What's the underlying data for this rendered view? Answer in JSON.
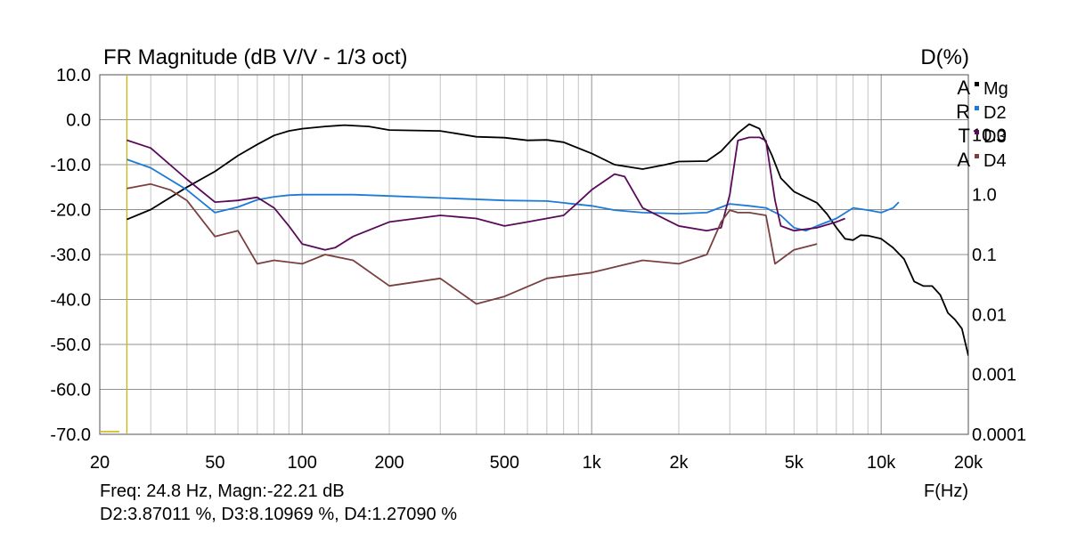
{
  "chart_data": {
    "type": "line",
    "title": "FR Magnitude (dB V/V - 1/3 oct)",
    "right_axis_title": "D(%)",
    "xlabel": "F(Hz)",
    "x_scale": "log",
    "xlim": [
      20,
      20000
    ],
    "ylim": [
      -70,
      10
    ],
    "y2_scale": "log",
    "y2lim": [
      0.0001,
      100
    ],
    "grid": true,
    "x_tick_labels": [
      {
        "v": 20,
        "t": "20"
      },
      {
        "v": 50,
        "t": "50"
      },
      {
        "v": 100,
        "t": "100"
      },
      {
        "v": 200,
        "t": "200"
      },
      {
        "v": 500,
        "t": "500"
      },
      {
        "v": 1000,
        "t": "1k"
      },
      {
        "v": 2000,
        "t": "2k"
      },
      {
        "v": 5000,
        "t": "5k"
      },
      {
        "v": 10000,
        "t": "10k"
      },
      {
        "v": 20000,
        "t": "20k"
      }
    ],
    "y_tick_labels": [
      {
        "v": 10,
        "t": "10.0"
      },
      {
        "v": 0,
        "t": "0.0"
      },
      {
        "v": -10,
        "t": "-10.0"
      },
      {
        "v": -20,
        "t": "-20.0"
      },
      {
        "v": -30,
        "t": "-30.0"
      },
      {
        "v": -40,
        "t": "-40.0"
      },
      {
        "v": -50,
        "t": "-50.0"
      },
      {
        "v": -60,
        "t": "-60.0"
      },
      {
        "v": -70,
        "t": "-70.0"
      }
    ],
    "y2_tick_labels": [
      {
        "v": 10,
        "t": "10.0"
      },
      {
        "v": 1,
        "t": "1.0"
      },
      {
        "v": 0.1,
        "t": "0.1"
      },
      {
        "v": 0.01,
        "t": "0.01"
      },
      {
        "v": 0.001,
        "t": "0.001"
      },
      {
        "v": 0.0001,
        "t": "0.0001"
      }
    ],
    "brand_letters": [
      "A",
      "R",
      "T",
      "A"
    ],
    "legend_position": "top-right",
    "cursor": {
      "x": 24.8
    },
    "readout": {
      "line1": "Freq: 24.8 Hz, Magn:-22.21 dB",
      "line2": "D2:3.87011 %, D3:8.10969 %, D4:1.27090 %"
    },
    "series": [
      {
        "name": "Mg",
        "axis": "left",
        "color": "#000000",
        "points": [
          [
            24.8,
            -22.2
          ],
          [
            30,
            -20
          ],
          [
            40,
            -15
          ],
          [
            50,
            -11.5
          ],
          [
            60,
            -8
          ],
          [
            70,
            -5.5
          ],
          [
            80,
            -3.5
          ],
          [
            90,
            -2.5
          ],
          [
            100,
            -2
          ],
          [
            120,
            -1.5
          ],
          [
            140,
            -1.2
          ],
          [
            170,
            -1.5
          ],
          [
            200,
            -2.3
          ],
          [
            300,
            -2.5
          ],
          [
            400,
            -3.8
          ],
          [
            500,
            -4
          ],
          [
            600,
            -4.6
          ],
          [
            700,
            -4.5
          ],
          [
            800,
            -5
          ],
          [
            1000,
            -7.5
          ],
          [
            1200,
            -10
          ],
          [
            1500,
            -11
          ],
          [
            1800,
            -10
          ],
          [
            2000,
            -9.3
          ],
          [
            2500,
            -9.2
          ],
          [
            2800,
            -7
          ],
          [
            3200,
            -3
          ],
          [
            3500,
            -1
          ],
          [
            3800,
            -2
          ],
          [
            4200,
            -8
          ],
          [
            4500,
            -13
          ],
          [
            5000,
            -16
          ],
          [
            6000,
            -18.5
          ],
          [
            6500,
            -21
          ],
          [
            7000,
            -24
          ],
          [
            7500,
            -26.5
          ],
          [
            8000,
            -26.8
          ],
          [
            8500,
            -25.7
          ],
          [
            9000,
            -25.8
          ],
          [
            10000,
            -26.5
          ],
          [
            11000,
            -28.5
          ],
          [
            12000,
            -31
          ],
          [
            13000,
            -36
          ],
          [
            14000,
            -37
          ],
          [
            15000,
            -37
          ],
          [
            16000,
            -39
          ],
          [
            17000,
            -43
          ],
          [
            18000,
            -44.5
          ],
          [
            19000,
            -46.5
          ],
          [
            20000,
            -52.5
          ]
        ]
      },
      {
        "name": "D2",
        "axis": "right",
        "color": "#1e7ad8",
        "points": [
          [
            24.8,
            3.87
          ],
          [
            30,
            2.8
          ],
          [
            40,
            1.2
          ],
          [
            50,
            0.5
          ],
          [
            60,
            0.62
          ],
          [
            70,
            0.82
          ],
          [
            80,
            0.92
          ],
          [
            90,
            0.98
          ],
          [
            100,
            1.0
          ],
          [
            150,
            1.0
          ],
          [
            200,
            0.95
          ],
          [
            300,
            0.88
          ],
          [
            500,
            0.8
          ],
          [
            700,
            0.78
          ],
          [
            1000,
            0.65
          ],
          [
            1200,
            0.55
          ],
          [
            1500,
            0.5
          ],
          [
            2000,
            0.48
          ],
          [
            2500,
            0.5
          ],
          [
            3000,
            0.7
          ],
          [
            3500,
            0.65
          ],
          [
            4000,
            0.6
          ],
          [
            4500,
            0.45
          ],
          [
            5000,
            0.28
          ],
          [
            5500,
            0.25
          ],
          [
            6000,
            0.3
          ],
          [
            7000,
            0.4
          ],
          [
            8000,
            0.6
          ],
          [
            9000,
            0.55
          ],
          [
            10000,
            0.5
          ],
          [
            11000,
            0.6
          ],
          [
            11500,
            0.75
          ]
        ]
      },
      {
        "name": "D3",
        "axis": "right",
        "color": "#5a0a5a",
        "points": [
          [
            24.8,
            8.11
          ],
          [
            30,
            6
          ],
          [
            40,
            1.8
          ],
          [
            50,
            0.75
          ],
          [
            60,
            0.8
          ],
          [
            70,
            0.9
          ],
          [
            80,
            0.6
          ],
          [
            90,
            0.3
          ],
          [
            100,
            0.15
          ],
          [
            120,
            0.12
          ],
          [
            130,
            0.13
          ],
          [
            150,
            0.2
          ],
          [
            200,
            0.35
          ],
          [
            300,
            0.45
          ],
          [
            400,
            0.4
          ],
          [
            500,
            0.3
          ],
          [
            600,
            0.35
          ],
          [
            800,
            0.45
          ],
          [
            900,
            0.75
          ],
          [
            1000,
            1.2
          ],
          [
            1200,
            2.2
          ],
          [
            1300,
            2.0
          ],
          [
            1500,
            0.6
          ],
          [
            2000,
            0.3
          ],
          [
            2500,
            0.25
          ],
          [
            2800,
            0.28
          ],
          [
            3000,
            1.0
          ],
          [
            3200,
            8
          ],
          [
            3500,
            9
          ],
          [
            3800,
            9
          ],
          [
            4000,
            8
          ],
          [
            4300,
            0.8
          ],
          [
            4500,
            0.3
          ],
          [
            5000,
            0.25
          ],
          [
            6000,
            0.28
          ],
          [
            7000,
            0.35
          ],
          [
            7500,
            0.4
          ]
        ]
      },
      {
        "name": "D4",
        "axis": "right",
        "color": "#7a4040",
        "points": [
          [
            24.8,
            1.27
          ],
          [
            30,
            1.5
          ],
          [
            35,
            1.2
          ],
          [
            40,
            0.8
          ],
          [
            50,
            0.2
          ],
          [
            60,
            0.25
          ],
          [
            70,
            0.07
          ],
          [
            80,
            0.08
          ],
          [
            100,
            0.07
          ],
          [
            120,
            0.1
          ],
          [
            150,
            0.08
          ],
          [
            200,
            0.03
          ],
          [
            300,
            0.04
          ],
          [
            400,
            0.015
          ],
          [
            500,
            0.02
          ],
          [
            700,
            0.04
          ],
          [
            1000,
            0.05
          ],
          [
            1500,
            0.08
          ],
          [
            2000,
            0.07
          ],
          [
            2500,
            0.1
          ],
          [
            2800,
            0.35
          ],
          [
            3000,
            0.55
          ],
          [
            3200,
            0.5
          ],
          [
            3500,
            0.5
          ],
          [
            4000,
            0.45
          ],
          [
            4300,
            0.07
          ],
          [
            5000,
            0.12
          ],
          [
            6000,
            0.15
          ]
        ]
      }
    ]
  }
}
